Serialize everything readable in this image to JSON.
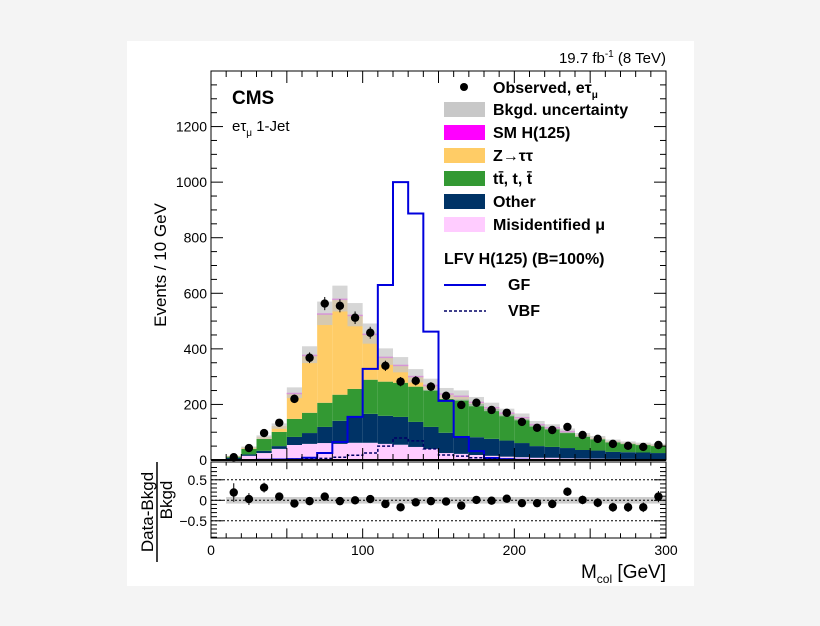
{
  "chart_data": {
    "type": "bar",
    "subtype": "stacked-histogram-with-ratio",
    "header_right": "19.7 fb",
    "header_right_sup": "-1",
    "header_right_tail": " (8 TeV)",
    "experiment_label": "CMS",
    "channel_label": "eτ",
    "channel_sub": "μ",
    "channel_tail": " 1-Jet",
    "xlabel": "M",
    "xlabel_sub": "col",
    "xlabel_tail": " [GeV]",
    "ylabel": "Events / 10 GeV",
    "ratio_ylabel_num": "Data-Bkgd",
    "ratio_ylabel_den": "Bkgd",
    "xlim": [
      0,
      300
    ],
    "ylim": [
      0,
      1400
    ],
    "ratio_ylim": [
      -0.93,
      0.88
    ],
    "bin_width": 10,
    "x_tick_labels": [
      "0",
      "100",
      "200",
      "300"
    ],
    "y_tick_labels": [
      "0",
      "200",
      "400",
      "600",
      "800",
      "1000",
      "1200"
    ],
    "ratio_tick_labels": [
      "0.5",
      "0",
      "−0.5"
    ],
    "legend_position": "top-right",
    "bin_edges_start": [
      0,
      10,
      20,
      30,
      40,
      50,
      60,
      70,
      80,
      90,
      100,
      110,
      120,
      130,
      140,
      150,
      160,
      170,
      180,
      190,
      200,
      210,
      220,
      230,
      240,
      250,
      260,
      270,
      280,
      290
    ],
    "stack": [
      {
        "name": "Misidentified μ",
        "color": "#ffccff",
        "values": [
          0,
          3,
          15,
          25,
          40,
          54,
          58,
          61,
          58,
          62,
          62,
          58,
          55,
          47,
          40,
          25,
          22,
          18,
          15,
          12,
          10,
          8,
          8,
          6,
          5,
          5,
          4,
          4,
          3,
          3
        ]
      },
      {
        "name": "Other",
        "color": "#003366",
        "values": [
          0,
          5,
          5,
          8,
          10,
          29,
          39,
          58,
          83,
          93,
          104,
          101,
          100,
          90,
          79,
          73,
          61,
          64,
          61,
          58,
          51,
          42,
          39,
          37,
          31,
          29,
          25,
          24,
          24,
          22
        ]
      },
      {
        "name": "tt̄, t, t̄",
        "color": "#339933",
        "values": [
          0,
          4,
          20,
          43,
          51,
          65,
          73,
          87,
          94,
          101,
          123,
          123,
          123,
          127,
          134,
          122,
          135,
          120,
          108,
          94,
          87,
          74,
          66,
          57,
          50,
          42,
          36,
          31,
          28,
          26
        ]
      },
      {
        "name": "Z→ττ",
        "color": "#ffcc66",
        "values": [
          0,
          2,
          5,
          6,
          21,
          93,
          207,
          319,
          342,
          263,
          162,
          87,
          62,
          36,
          16,
          18,
          12,
          7,
          6,
          6,
          6,
          5,
          5,
          4,
          4,
          4,
          3,
          3,
          3,
          3
        ]
      },
      {
        "name": "SM H(125)",
        "color": "#ff00ff",
        "values": [
          0,
          0,
          0,
          0,
          0,
          1,
          2,
          3,
          4,
          4,
          4,
          3,
          3,
          3,
          2,
          2,
          2,
          1,
          1,
          1,
          1,
          1,
          1,
          1,
          0,
          0,
          0,
          0,
          0,
          0
        ]
      }
    ],
    "bkg_uncertainty_fraction": 0.08,
    "uncertainty_color": "#c8c8c8",
    "observed": {
      "name": "Observed, eτ",
      "name_sub": "μ",
      "values": [
        null,
        10,
        43,
        97,
        134,
        220,
        368,
        563,
        555,
        512,
        458,
        339,
        282,
        285,
        264,
        231,
        198,
        206,
        180,
        170,
        137,
        116,
        108,
        119,
        90,
        76,
        58,
        51,
        47,
        54
      ]
    },
    "ratio": [
      null,
      0.19,
      0.03,
      0.31,
      0.09,
      -0.08,
      -0.02,
      0.09,
      -0.02,
      0.0,
      0.03,
      -0.09,
      -0.17,
      -0.05,
      -0.02,
      -0.03,
      -0.13,
      0.01,
      -0.01,
      0.04,
      -0.07,
      -0.07,
      -0.09,
      0.21,
      0.01,
      -0.06,
      -0.17,
      -0.17,
      -0.17,
      0.09
    ],
    "signal_title": "LFV H(125) (B=100%)",
    "signals": [
      {
        "name": "GF",
        "color": "#0000dd",
        "style": "solid",
        "values": [
          0,
          0,
          0,
          1,
          2,
          3,
          8,
          25,
          65,
          155,
          328,
          630,
          1000,
          887,
          462,
          213,
          83,
          32,
          7,
          3,
          1,
          0,
          0,
          0,
          0,
          0,
          0,
          0,
          0,
          0
        ]
      },
      {
        "name": "VBF",
        "color": "#000066",
        "style": "dashed",
        "values": [
          0,
          0,
          0,
          0,
          1,
          2,
          3,
          6,
          10,
          17,
          25,
          50,
          79,
          69,
          40,
          18,
          14,
          8,
          4,
          2,
          1,
          0,
          0,
          0,
          0,
          0,
          0,
          0,
          0,
          0
        ]
      }
    ],
    "legend": {
      "observed": "Observed, eτ",
      "observed_sub": "μ",
      "uncertainty": "Bkgd. uncertainty",
      "smh": "SM H(125)",
      "ztt": "Z→ττ",
      "ttbar": "tt̄, t, t̄",
      "other": "Other",
      "misid": "Misidentified μ"
    }
  }
}
